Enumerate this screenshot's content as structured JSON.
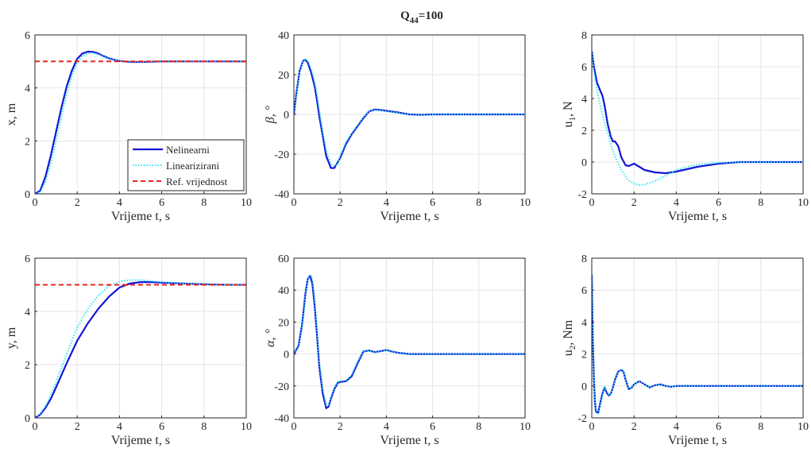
{
  "figure": {
    "title_main": "Q",
    "title_sub": "44",
    "title_tail": "=100",
    "colors": {
      "nonlinear": "#1515d6",
      "linearized": "#2ee6ee",
      "reference": "#e8251f",
      "grid": "#e5e5e5",
      "axis": "#262626"
    }
  },
  "chart_data": [
    {
      "type": "line",
      "id": "x",
      "ylabel": "x, m",
      "ylabel_sub": "",
      "xlabel": "Vrijeme t, s",
      "xlim": [
        0,
        10
      ],
      "ylim": [
        0,
        6
      ],
      "xticks": [
        0,
        2,
        4,
        6,
        8,
        10
      ],
      "yticks": [
        0,
        2,
        4,
        6
      ],
      "grid": true,
      "legend": {
        "placement": "bottom-right",
        "entries": [
          "Nelinearni",
          "Linearizirani",
          "Ref. vrijednost"
        ]
      },
      "series": [
        {
          "name": "Nelinearni",
          "x": [
            0,
            0.25,
            0.5,
            0.75,
            1,
            1.25,
            1.5,
            1.75,
            2,
            2.25,
            2.5,
            2.75,
            3,
            3.25,
            3.5,
            3.75,
            4,
            4.5,
            5,
            5.5,
            6,
            7,
            8,
            9,
            10
          ],
          "y": [
            0,
            0.12,
            0.65,
            1.45,
            2.35,
            3.25,
            4.05,
            4.65,
            5.1,
            5.3,
            5.37,
            5.36,
            5.3,
            5.2,
            5.12,
            5.06,
            5.02,
            4.98,
            4.98,
            4.99,
            5,
            5,
            5,
            5,
            5
          ]
        },
        {
          "name": "Linearizirani",
          "x": [
            0,
            0.25,
            0.5,
            0.75,
            1,
            1.25,
            1.5,
            1.75,
            2,
            2.25,
            2.5,
            2.75,
            3,
            3.25,
            3.5,
            3.75,
            4,
            4.5,
            5,
            5.5,
            6,
            7,
            8,
            9,
            10
          ],
          "y": [
            0,
            0.06,
            0.45,
            1.15,
            2.0,
            2.9,
            3.75,
            4.45,
            4.95,
            5.2,
            5.3,
            5.32,
            5.27,
            5.18,
            5.1,
            5.05,
            5.02,
            4.99,
            4.99,
            5,
            5,
            5,
            5,
            5,
            5
          ]
        },
        {
          "name": "Ref. vrijednost",
          "x": [
            0,
            10
          ],
          "y": [
            5,
            5
          ]
        }
      ]
    },
    {
      "type": "line",
      "id": "beta",
      "ylabel": "β, °",
      "ylabel_sub": "",
      "xlabel": "Vrijeme t, s",
      "xlim": [
        0,
        10
      ],
      "ylim": [
        -40,
        40
      ],
      "xticks": [
        0,
        2,
        4,
        6,
        8,
        10
      ],
      "yticks": [
        -40,
        -20,
        0,
        20,
        40
      ],
      "grid": true,
      "series": [
        {
          "name": "Nelinearni",
          "x": [
            0,
            0.1,
            0.25,
            0.4,
            0.5,
            0.6,
            0.75,
            0.9,
            1.0,
            1.1,
            1.25,
            1.4,
            1.6,
            1.75,
            1.9,
            2.0,
            2.25,
            2.5,
            2.75,
            3.0,
            3.25,
            3.5,
            3.75,
            4.0,
            4.5,
            5.0,
            5.5,
            6,
            7,
            8,
            9,
            10
          ],
          "y": [
            0,
            10,
            22,
            27,
            27.5,
            26,
            21,
            14,
            7,
            -1,
            -11,
            -21,
            -27,
            -27,
            -24,
            -22,
            -15,
            -10,
            -6,
            -2,
            1.5,
            2.5,
            2.2,
            1.8,
            1,
            0,
            -0.2,
            0,
            0,
            0,
            0,
            0
          ]
        },
        {
          "name": "Linearizirani",
          "x": [
            0,
            0.1,
            0.25,
            0.4,
            0.5,
            0.6,
            0.75,
            0.9,
            1.0,
            1.1,
            1.25,
            1.4,
            1.6,
            1.75,
            1.9,
            2.0,
            2.25,
            2.5,
            2.75,
            3.0,
            3.25,
            3.5,
            3.75,
            4.0,
            4.5,
            5.0,
            5.5,
            6,
            7,
            8,
            9,
            10
          ],
          "y": [
            0,
            9,
            21,
            27,
            28,
            27,
            23,
            16.5,
            10,
            2,
            -9,
            -18,
            -25,
            -26,
            -25,
            -21,
            -14,
            -9.5,
            -5.5,
            -1.5,
            1.5,
            2.3,
            2,
            1.6,
            0.8,
            0,
            -0.2,
            0,
            0,
            0,
            0,
            0
          ]
        }
      ]
    },
    {
      "type": "line",
      "id": "u1",
      "ylabel": "u",
      "ylabel_sub": "1",
      "ylabel_tail": ", N",
      "xlabel": "Vrijeme t, s",
      "xlim": [
        0,
        10
      ],
      "ylim": [
        -2,
        8
      ],
      "xticks": [
        0,
        2,
        4,
        6,
        8,
        10
      ],
      "yticks": [
        -2,
        0,
        2,
        4,
        6,
        8
      ],
      "grid": true,
      "series": [
        {
          "name": "Nelinearni",
          "x": [
            0,
            0.1,
            0.25,
            0.4,
            0.5,
            0.6,
            0.75,
            0.9,
            1.0,
            1.1,
            1.25,
            1.4,
            1.6,
            1.75,
            2.0,
            2.25,
            2.5,
            3.0,
            3.5,
            4.0,
            4.5,
            5.0,
            6.0,
            7.0,
            8.0,
            9.0,
            10
          ],
          "y": [
            7,
            6.0,
            5.0,
            4.5,
            4.2,
            3.6,
            2.4,
            1.6,
            1.3,
            1.3,
            1.0,
            0.3,
            -0.2,
            -0.25,
            -0.1,
            -0.3,
            -0.5,
            -0.65,
            -0.7,
            -0.6,
            -0.45,
            -0.3,
            -0.1,
            0,
            0,
            0,
            0
          ]
        },
        {
          "name": "Linearizirani",
          "x": [
            0,
            0.1,
            0.25,
            0.4,
            0.5,
            0.6,
            0.75,
            0.9,
            1.0,
            1.1,
            1.25,
            1.4,
            1.6,
            1.75,
            2.0,
            2.25,
            2.5,
            3.0,
            3.5,
            4.0,
            4.5,
            5.0,
            6.0,
            7.0,
            8.0,
            9.0,
            10
          ],
          "y": [
            7,
            5.7,
            4.5,
            3.6,
            3.0,
            2.5,
            1.8,
            1.1,
            0.7,
            0.35,
            -0.1,
            -0.5,
            -0.9,
            -1.15,
            -1.35,
            -1.45,
            -1.42,
            -1.2,
            -0.85,
            -0.5,
            -0.3,
            -0.15,
            -0.05,
            0,
            0,
            0,
            0
          ]
        }
      ]
    },
    {
      "type": "line",
      "id": "y",
      "ylabel": "y, m",
      "ylabel_sub": "",
      "xlabel": "Vrijeme t, s",
      "xlim": [
        0,
        10
      ],
      "ylim": [
        0,
        6
      ],
      "xticks": [
        0,
        2,
        4,
        6,
        8,
        10
      ],
      "yticks": [
        0,
        2,
        4,
        6
      ],
      "grid": true,
      "series": [
        {
          "name": "Nelinearni",
          "x": [
            0,
            0.25,
            0.5,
            0.75,
            1,
            1.5,
            2,
            2.5,
            3,
            3.5,
            4,
            4.5,
            5,
            5.5,
            6,
            7,
            8,
            9,
            10
          ],
          "y": [
            0,
            0.12,
            0.38,
            0.72,
            1.15,
            2.05,
            2.9,
            3.55,
            4.1,
            4.55,
            4.9,
            5.05,
            5.1,
            5.1,
            5.08,
            5.05,
            5.02,
            5,
            5
          ]
        },
        {
          "name": "Linearizirani",
          "x": [
            0,
            0.25,
            0.5,
            0.75,
            1,
            1.5,
            2,
            2.5,
            3,
            3.5,
            4,
            4.5,
            5,
            5.5,
            6,
            7,
            8,
            9,
            10
          ],
          "y": [
            0,
            0.15,
            0.45,
            0.85,
            1.35,
            2.4,
            3.4,
            4.1,
            4.6,
            4.95,
            5.12,
            5.18,
            5.18,
            5.14,
            5.1,
            5.05,
            5.02,
            5,
            5
          ]
        },
        {
          "name": "Ref. vrijednost",
          "x": [
            0,
            10
          ],
          "y": [
            5,
            5
          ]
        }
      ]
    },
    {
      "type": "line",
      "id": "alpha",
      "ylabel": "α, °",
      "ylabel_sub": "",
      "xlabel": "Vrijeme t, s",
      "xlim": [
        0,
        10
      ],
      "ylim": [
        -40,
        60
      ],
      "xticks": [
        0,
        2,
        4,
        6,
        8,
        10
      ],
      "yticks": [
        -40,
        -20,
        0,
        20,
        40,
        60
      ],
      "grid": true,
      "series": [
        {
          "name": "Nelinearni",
          "x": [
            0,
            0.2,
            0.35,
            0.5,
            0.6,
            0.7,
            0.8,
            0.9,
            1.0,
            1.1,
            1.25,
            1.4,
            1.5,
            1.6,
            1.75,
            1.9,
            2.0,
            2.25,
            2.5,
            2.75,
            3.0,
            3.25,
            3.5,
            3.75,
            4.0,
            4.25,
            4.5,
            5,
            5.5,
            6,
            7,
            8,
            9,
            10
          ],
          "y": [
            0,
            5,
            18,
            38,
            47,
            49,
            44,
            30,
            12,
            -8,
            -25,
            -34,
            -33,
            -28,
            -22,
            -18,
            -17.5,
            -17,
            -14,
            -6,
            1.5,
            2.2,
            1.2,
            1.8,
            2.5,
            1.5,
            0.8,
            0,
            0,
            0,
            0,
            0,
            0,
            0
          ]
        },
        {
          "name": "Linearizirani",
          "x": [
            0,
            0.2,
            0.35,
            0.5,
            0.6,
            0.7,
            0.8,
            0.9,
            1.0,
            1.1,
            1.25,
            1.4,
            1.5,
            1.6,
            1.75,
            1.9,
            2.0,
            2.25,
            2.5,
            2.75,
            3.0,
            3.25,
            3.5,
            3.75,
            4.0,
            4.25,
            4.5,
            5,
            5.5,
            6,
            7,
            8,
            9,
            10
          ],
          "y": [
            0,
            4,
            16,
            36,
            46,
            50,
            47,
            34,
            15,
            -5,
            -22,
            -32,
            -32,
            -27,
            -21,
            -17.5,
            -17,
            -16.5,
            -13,
            -5,
            2,
            2,
            1,
            2,
            2.5,
            1.5,
            0.8,
            0,
            0,
            0,
            0,
            0,
            0,
            0
          ]
        }
      ]
    },
    {
      "type": "line",
      "id": "u2",
      "ylabel": "u",
      "ylabel_sub": "2",
      "ylabel_tail": ", Nm",
      "xlabel": "Vrijeme t, s",
      "xlim": [
        0,
        10
      ],
      "ylim": [
        -2,
        8
      ],
      "xticks": [
        0,
        2,
        4,
        6,
        8,
        10
      ],
      "yticks": [
        -2,
        0,
        2,
        4,
        6,
        8
      ],
      "grid": true,
      "series": [
        {
          "name": "Nelinearni",
          "x": [
            0,
            0.05,
            0.1,
            0.15,
            0.2,
            0.3,
            0.4,
            0.5,
            0.6,
            0.7,
            0.8,
            0.9,
            1.0,
            1.1,
            1.25,
            1.4,
            1.5,
            1.6,
            1.75,
            1.9,
            2.0,
            2.25,
            2.5,
            2.75,
            3.0,
            3.25,
            3.5,
            3.75,
            4.0,
            4.5,
            5,
            6,
            7,
            8,
            9,
            10
          ],
          "y": [
            7,
            3,
            0.5,
            -1.0,
            -1.6,
            -1.7,
            -1.1,
            -0.5,
            -0.1,
            -0.4,
            -0.6,
            -0.5,
            -0.1,
            0.4,
            0.9,
            1.0,
            0.9,
            0.4,
            -0.2,
            -0.1,
            0.1,
            0.3,
            0.1,
            -0.1,
            0.05,
            0.1,
            0,
            -0.05,
            0,
            0,
            0,
            0,
            0,
            0,
            0,
            0
          ]
        },
        {
          "name": "Linearizirani",
          "x": [
            0,
            0.05,
            0.1,
            0.15,
            0.2,
            0.3,
            0.4,
            0.5,
            0.6,
            0.7,
            0.8,
            0.9,
            1.0,
            1.1,
            1.25,
            1.4,
            1.5,
            1.6,
            1.75,
            1.9,
            2.0,
            2.25,
            2.5,
            2.75,
            3.0,
            3.25,
            3.5,
            3.75,
            4.0,
            4.5,
            5,
            6,
            7,
            8,
            9,
            10
          ],
          "y": [
            7,
            3.2,
            0.6,
            -0.9,
            -1.5,
            -1.8,
            -1.2,
            -0.6,
            -0.05,
            -0.3,
            -0.55,
            -0.5,
            -0.15,
            0.35,
            0.85,
            1.05,
            0.95,
            0.45,
            -0.15,
            -0.1,
            0.1,
            0.3,
            0.1,
            -0.1,
            0.05,
            0.1,
            0,
            -0.05,
            0,
            0,
            0,
            0,
            0,
            0,
            0,
            0
          ]
        }
      ]
    }
  ]
}
